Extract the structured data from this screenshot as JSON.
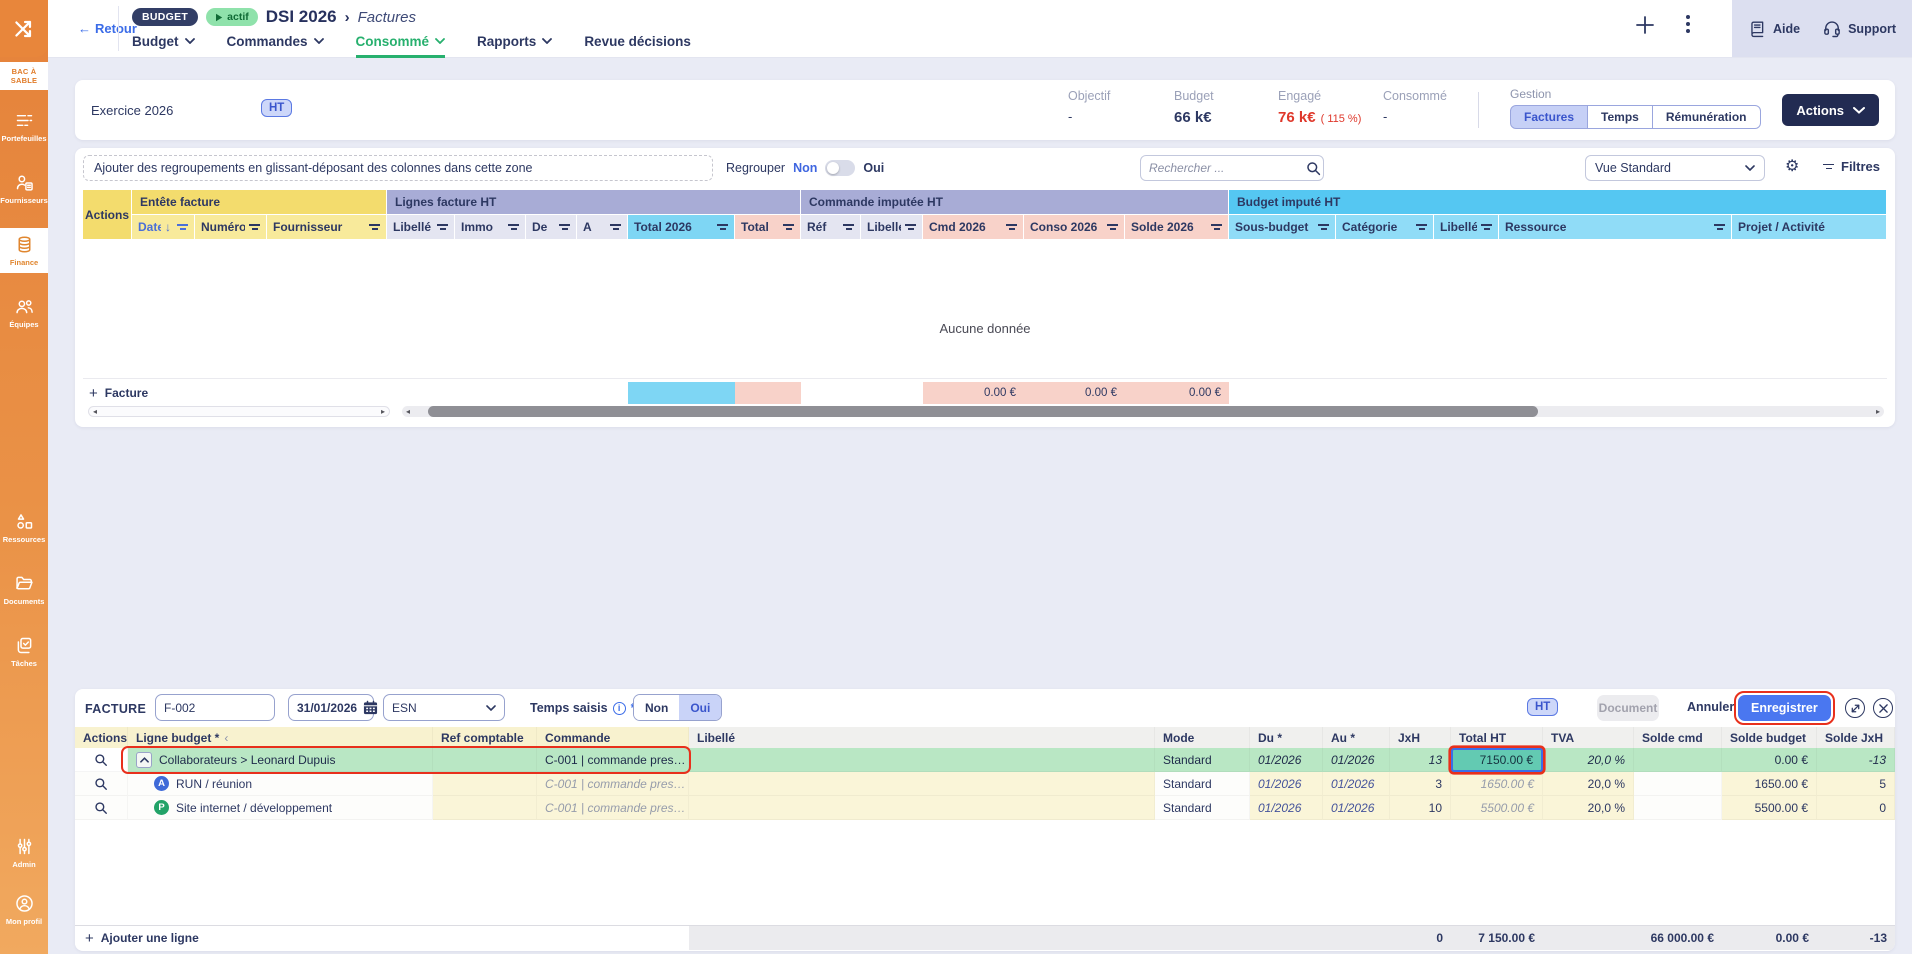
{
  "colors": {
    "brand_orange": "#e8863b",
    "navy": "#2d3862",
    "accent_blue": "#3f66e0",
    "active_green": "#27b06e",
    "alert_red": "#df382b",
    "annotation_red": "#e8301c",
    "selected_row_green": "#b9e7c4",
    "selected_cell_teal": "#63cab2",
    "group_yellow": "#f3dc6d",
    "group_lavender": "#a8acd6",
    "group_cyan": "#55c7f2",
    "column_pink": "#f8d2c9",
    "save_blue": "#4a77f0"
  },
  "icons": {
    "back": "arrow-left",
    "nav_caret": "chevron-down",
    "add": "plus",
    "more": "kebab",
    "help": "book",
    "support": "headset",
    "search": "magnifier",
    "settings": "gear",
    "filter": "filter-lines",
    "sort_desc": "arrow-down",
    "calendar": "calendar",
    "info": "i-circle",
    "expand": "diagonal-arrows",
    "close": "x",
    "collapse_row": "chevron-up",
    "collapse_column": "chevron-left",
    "scroll_left": "triangle-left",
    "scroll_right": "triangle-right",
    "status_play": "play"
  },
  "topbar": {
    "back": "Retour",
    "badge": "BUDGET",
    "status_badge": "actif",
    "title": "DSI 2026",
    "breadcrumb_separator": "›",
    "subtitle": "Factures",
    "nav": [
      {
        "label": "Budget",
        "caret": true,
        "active": false
      },
      {
        "label": "Commandes",
        "caret": true,
        "active": false
      },
      {
        "label": "Consommé",
        "caret": true,
        "active": true
      },
      {
        "label": "Rapports",
        "caret": true,
        "active": false
      },
      {
        "label": "Revue décisions",
        "caret": false,
        "active": false
      }
    ],
    "help": "Aide",
    "support": "Support"
  },
  "sidebar": {
    "env": "BAC À SABLE",
    "items": [
      {
        "label": "Portefeuilles",
        "icon": "portfolio-icon",
        "active": false
      },
      {
        "label": "Fournisseurs",
        "icon": "suppliers-icon",
        "active": false
      },
      {
        "label": "Finance",
        "icon": "finance-icon",
        "active": true
      },
      {
        "label": "Équipes",
        "icon": "teams-icon",
        "active": false
      },
      {
        "label": "Ressources",
        "icon": "resources-icon",
        "active": false
      },
      {
        "label": "Documents",
        "icon": "documents-icon",
        "active": false
      },
      {
        "label": "Tâches",
        "icon": "tasks-icon",
        "active": false
      }
    ],
    "bottom_items": [
      {
        "label": "Admin",
        "icon": "admin-icon",
        "active": false
      },
      {
        "label": "Mon profil",
        "icon": "profile-icon",
        "active": false
      }
    ]
  },
  "summary": {
    "exercice": "Exercice 2026",
    "tax_mode": "HT",
    "stats": [
      {
        "label": "Objectif",
        "value": "-",
        "style": "plain"
      },
      {
        "label": "Budget",
        "value": "66 k€",
        "style": "big"
      },
      {
        "label": "Engagé",
        "value": "76 k€",
        "note": "( 115 %)",
        "style": "alert"
      },
      {
        "label": "Consommé",
        "value": "-",
        "style": "plain"
      }
    ],
    "gestion_label": "Gestion",
    "gestion_tabs": [
      {
        "label": "Factures",
        "active": true
      },
      {
        "label": "Temps",
        "active": false
      },
      {
        "label": "Rémunération",
        "active": false
      }
    ],
    "actions_button": "Actions"
  },
  "toolbar": {
    "group_hint": "Ajouter des regroupements en glissant-déposant des colonnes dans cette zone",
    "regrouper_label": "Regrouper",
    "toggle_off": "Non",
    "toggle_on": "Oui",
    "regrouper_state": "Non",
    "search_placeholder": "Rechercher ...",
    "view_select": "Vue Standard",
    "filters_label": "Filtres"
  },
  "invoices_table": {
    "actions_column": "Actions",
    "column_groups": [
      {
        "label": "Entête facture",
        "span": 3,
        "color": "yellow"
      },
      {
        "label": "Lignes facture HT",
        "span": 6,
        "color": "lav"
      },
      {
        "label": "Commande imputée HT",
        "span": 5,
        "color": "lav"
      },
      {
        "label": "Budget imputé HT",
        "span": 5,
        "color": "cyan"
      }
    ],
    "columns": [
      {
        "label": "Date",
        "sort": "desc",
        "filter": true,
        "tint": "yellow",
        "link": true
      },
      {
        "label": "Numéro",
        "filter": true,
        "tint": "yellow"
      },
      {
        "label": "Fournisseur",
        "filter": true,
        "tint": "yellow"
      },
      {
        "label": "Libellé",
        "filter": true,
        "tint": "lav"
      },
      {
        "label": "Immo",
        "filter": true,
        "tint": "lav"
      },
      {
        "label": "De",
        "filter": true,
        "tint": "lav"
      },
      {
        "label": "A",
        "filter": true,
        "tint": "lav"
      },
      {
        "label": "Total 2026",
        "filter": true,
        "tint": "cyanS"
      },
      {
        "label": "Total",
        "filter": true,
        "tint": "pink"
      },
      {
        "label": "Réf",
        "filter": true,
        "tint": "lav"
      },
      {
        "label": "Libellé",
        "filter": true,
        "tint": "lav"
      },
      {
        "label": "Cmd 2026",
        "filter": true,
        "tint": "pink"
      },
      {
        "label": "Conso 2026",
        "filter": true,
        "tint": "pink"
      },
      {
        "label": "Solde 2026",
        "filter": true,
        "tint": "pink"
      },
      {
        "label": "Sous-budget",
        "filter": true,
        "tint": "cyan"
      },
      {
        "label": "Catégorie",
        "filter": true,
        "tint": "cyan"
      },
      {
        "label": "Libellé",
        "filter": true,
        "tint": "cyan"
      },
      {
        "label": "Ressource",
        "filter": true,
        "tint": "cyan"
      },
      {
        "label": "Projet / Activité",
        "filter": false,
        "tint": "cyan"
      }
    ],
    "empty_message": "Aucune donnée",
    "add_row_label": "Facture",
    "footer_totals": {
      "total_2026": "",
      "total": "",
      "cmd_2026": "0.00 €",
      "conso_2026": "0.00 €",
      "solde_2026": "0.00 €"
    }
  },
  "invoice_editor": {
    "title": "FACTURE",
    "number": "F-002",
    "date": "31/01/2026",
    "supplier": "ESN",
    "temps_saisis_label": "Temps saisis",
    "required_mark": "*",
    "toggle_no": "Non",
    "toggle_yes": "Oui",
    "toggle_selected": "Oui",
    "tax_badge": "HT",
    "document_button": "Document",
    "cancel_button": "Annuler",
    "save_button": "Enregistrer",
    "lines": {
      "columns": [
        "Actions",
        "Ligne budget *",
        "Ref comptable",
        "Commande",
        "Libellé",
        "Mode",
        "Du *",
        "Au *",
        "JxH",
        "Total HT",
        "TVA",
        "Solde cmd",
        "Solde budget",
        "Solde JxH"
      ],
      "rows": [
        {
          "selected": true,
          "toggle": "collapse",
          "ligne_budget": "Collaborateurs > Leonard Dupuis",
          "ref_comptable": "",
          "commande": "C-001 | commande pres…",
          "libelle": "",
          "mode": "Standard",
          "du": "01/2026",
          "au": "01/2026",
          "jxh": "13",
          "total_ht": "7150.00 €",
          "tva": "20,0 %",
          "solde_cmd": "",
          "solde_budget": "0.00 €",
          "solde_jxh": "-13"
        },
        {
          "selected": false,
          "badge": "A",
          "badge_color": "#3f6ad8",
          "ligne_budget": "RUN / réunion",
          "ref_comptable": "",
          "commande": "C-001 | commande pres…",
          "libelle": "",
          "mode": "Standard",
          "du": "01/2026",
          "au": "01/2026",
          "jxh": "3",
          "total_ht": "1650.00 €",
          "tva": "20,0 %",
          "solde_cmd": "",
          "solde_budget": "1650.00 €",
          "solde_jxh": "5"
        },
        {
          "selected": false,
          "badge": "P",
          "badge_color": "#22a368",
          "ligne_budget": "Site internet / développement",
          "ref_comptable": "",
          "commande": "C-001 | commande pres…",
          "libelle": "",
          "mode": "Standard",
          "du": "01/2026",
          "au": "01/2026",
          "jxh": "10",
          "total_ht": "5500.00 €",
          "tva": "20,0 %",
          "solde_cmd": "",
          "solde_budget": "5500.00 €",
          "solde_jxh": "0"
        }
      ],
      "footer": {
        "add_label": "Ajouter une ligne",
        "jxh": "0",
        "total_ht": "7 150.00 €",
        "tva": "",
        "solde_cmd": "66 000.00 €",
        "solde_budget": "0.00 €",
        "solde_jxh": "-13"
      }
    }
  }
}
